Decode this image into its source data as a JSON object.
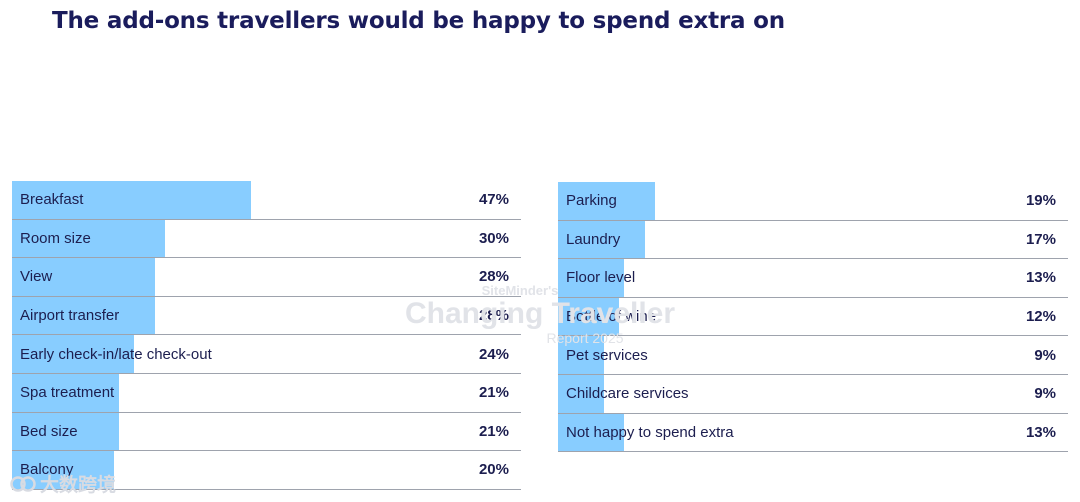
{
  "page": {
    "title": "The add-ons travellers would be happy to spend extra on"
  },
  "colors": {
    "bar": "#88cdff",
    "text": "#1c1e4f",
    "divider": "#9ea3ad"
  },
  "watermark": {
    "line1": "SiteMinder's",
    "line2": "Changing Traveller",
    "line3": "Report 2025"
  },
  "corner_watermark": {
    "text": "大数跨境"
  },
  "chart_data": [
    {
      "type": "bar",
      "orientation": "horizontal",
      "unit": "%",
      "title": "The add-ons travellers would be happy to spend extra on",
      "xlim": [
        0,
        100
      ],
      "categories": [
        "Breakfast",
        "Room size",
        "View",
        "Airport transfer",
        "Early check-in/late check-out",
        "Spa treatment",
        "Bed size",
        "Balcony"
      ],
      "values": [
        47,
        30,
        28,
        28,
        24,
        21,
        21,
        20
      ],
      "value_labels": [
        "47%",
        "30%",
        "28%",
        "28%",
        "24%",
        "21%",
        "21%",
        "20%"
      ]
    },
    {
      "type": "bar",
      "orientation": "horizontal",
      "unit": "%",
      "xlim": [
        0,
        100
      ],
      "categories": [
        "Parking",
        "Laundry",
        "Floor level",
        "Bottle of wine",
        "Pet services",
        "Childcare services",
        "Not happy to spend extra"
      ],
      "values": [
        19,
        17,
        13,
        12,
        9,
        9,
        13
      ],
      "value_labels": [
        "19%",
        "17%",
        "13%",
        "12%",
        "9%",
        "9%",
        "13%"
      ]
    }
  ]
}
